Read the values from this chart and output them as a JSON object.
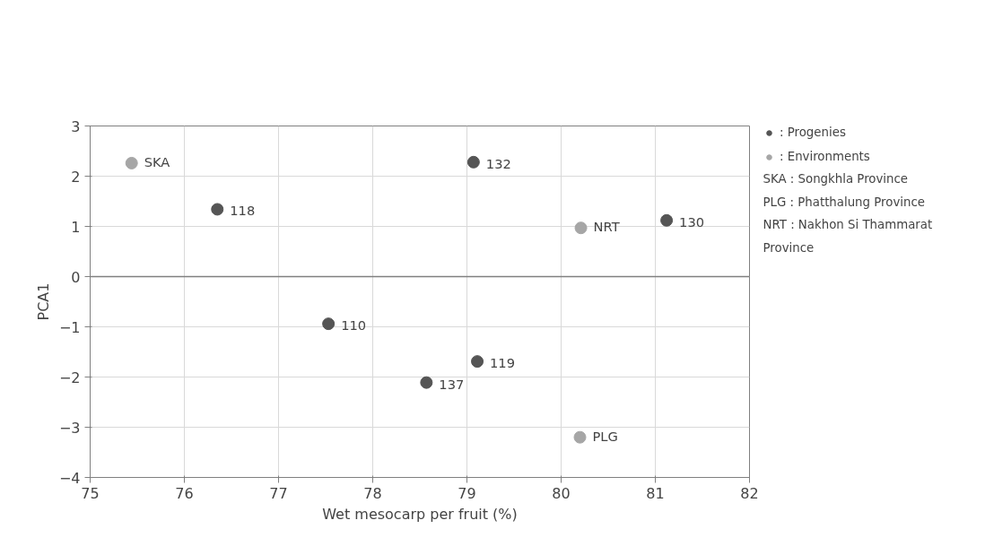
{
  "chart_data": {
    "type": "scatter",
    "xlabel": "Wet mesocarp per fruit (%)",
    "ylabel": "PCA1",
    "xlim": [
      75,
      82
    ],
    "xticks": [
      75,
      76,
      77,
      78,
      79,
      80,
      81,
      82
    ],
    "ylim": [
      -4,
      3
    ],
    "yticks": [
      -4,
      -3,
      -2,
      -1,
      0,
      1,
      2,
      3
    ],
    "grid": true,
    "legend": "right",
    "marker": "circle",
    "ref_lines": [
      {
        "axis": "y",
        "value": 0,
        "color": "#808080"
      }
    ],
    "series": [
      {
        "name": ": Progenies",
        "color": "#555555",
        "x": [
          76.35,
          79.07,
          81.12,
          77.53,
          79.11,
          78.57
        ],
        "values": [
          1.34,
          2.28,
          1.12,
          -0.94,
          -1.69,
          -2.11
        ]
      },
      {
        "name": ": Environments",
        "color": "#a6a6a6",
        "x": [
          75.44,
          80.21,
          80.2
        ],
        "values": [
          2.26,
          0.97,
          -3.2
        ]
      }
    ],
    "annotations": [
      {
        "text": "118",
        "x": 76.35,
        "y": 1.34
      },
      {
        "text": "132",
        "x": 79.07,
        "y": 2.28
      },
      {
        "text": "130",
        "x": 81.12,
        "y": 1.12
      },
      {
        "text": "110",
        "x": 77.53,
        "y": -0.94
      },
      {
        "text": "119",
        "x": 79.11,
        "y": -1.69
      },
      {
        "text": "137",
        "x": 78.57,
        "y": -2.11
      },
      {
        "text": "SKA",
        "x": 75.44,
        "y": 2.26
      },
      {
        "text": "NRT",
        "x": 80.21,
        "y": 0.97
      },
      {
        "text": "PLG",
        "x": 80.2,
        "y": -3.2
      },
      "SKA : Songkhla Province",
      "PLG : Phatthalung Province",
      "NRT : Nakhon Si Thammarat Province"
    ]
  }
}
